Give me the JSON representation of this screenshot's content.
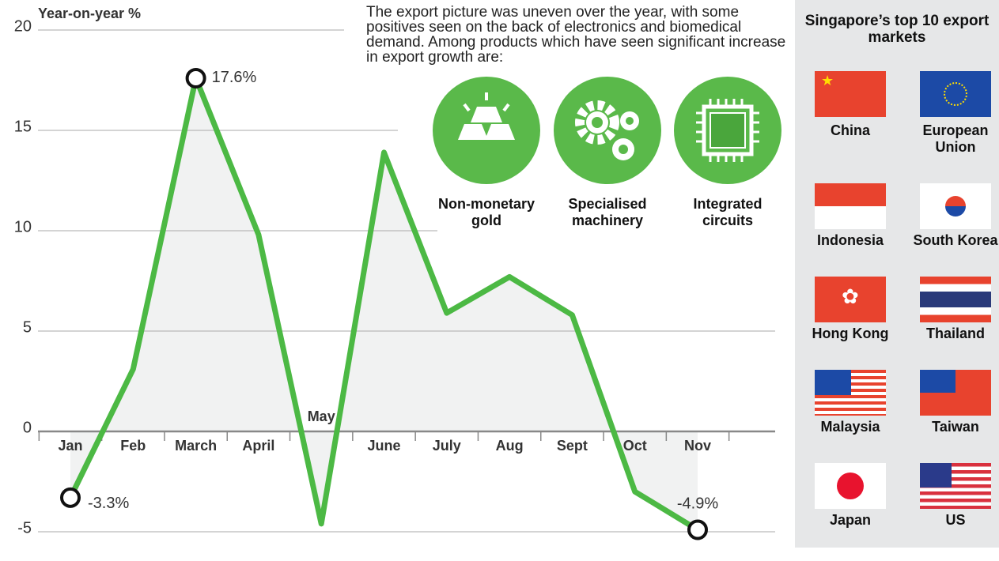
{
  "chart_data": {
    "type": "line",
    "y_label": "Year-on-year %",
    "categories": [
      "Jan",
      "Feb",
      "March",
      "April",
      "May",
      "June",
      "July",
      "Aug",
      "Sept",
      "Oct",
      "Nov"
    ],
    "values": [
      -3.3,
      3.1,
      17.6,
      9.8,
      -4.6,
      13.9,
      5.9,
      7.7,
      5.8,
      -3.0,
      -4.9
    ],
    "value_labels": [
      "-3.3%",
      null,
      "17.6%",
      null,
      null,
      null,
      null,
      null,
      null,
      null,
      "-4.9%"
    ],
    "color": "#4cb944",
    "ylim": [
      -5,
      20
    ],
    "yticks": [
      -5,
      0,
      5,
      10,
      15,
      20
    ]
  },
  "text": {
    "paragraph": "The export picture was uneven over the year, with some positives seen on the back of electronics and biomedical demand. Among products which have seen significant increase in export growth are:",
    "products": [
      "Non-monetary gold",
      "Specialised machinery",
      "Integrated circuits"
    ]
  },
  "panel": {
    "title": "Singapore’s top 10 export markets",
    "markets": [
      "China",
      "European Union",
      "Indonesia",
      "South Korea",
      "Hong Kong",
      "Thailand",
      "Malaysia",
      "Taiwan",
      "Japan",
      "US"
    ]
  }
}
